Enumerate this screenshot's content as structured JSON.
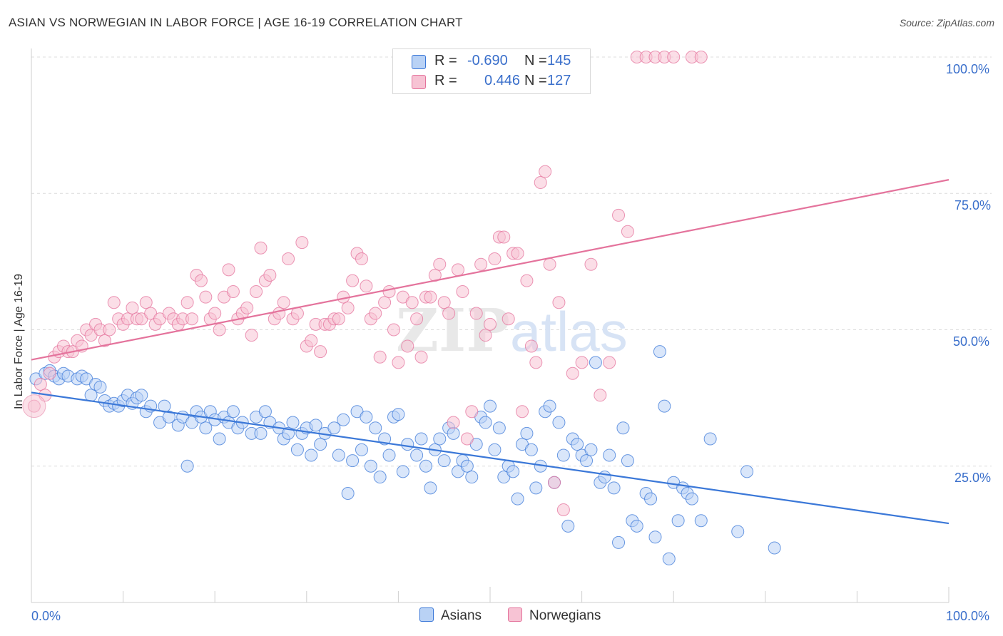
{
  "title": "ASIAN VS NORWEGIAN IN LABOR FORCE | AGE 16-19 CORRELATION CHART",
  "source": "Source: ZipAtlas.com",
  "watermark": "ZIPatlas",
  "colors": {
    "asian": "#3b78d8",
    "asian_fill": "#b9d2f5",
    "norwegian": "#e4739c",
    "norwegian_fill": "#f7c3d4",
    "tick_label": "#3a6fcb",
    "grid": "#dcdcdc"
  },
  "legend": {
    "rows": [
      {
        "r_label": "R =",
        "r_value": "-0.690",
        "n_label": "N =",
        "n_value": "145"
      },
      {
        "r_label": "R =",
        "r_value": "0.446",
        "n_label": "N =",
        "n_value": "127"
      }
    ]
  },
  "bottom_legend": {
    "asians": "Asians",
    "norwegians": "Norwegians"
  },
  "chart_data": {
    "type": "scatter",
    "title": "ASIAN VS NORWEGIAN IN LABOR FORCE | AGE 16-19 CORRELATION CHART",
    "xlabel": "",
    "ylabel": "In Labor Force | Age 16-19",
    "xlim": [
      0,
      100
    ],
    "ylim": [
      0,
      100
    ],
    "x_tick_labels": [
      "0.0%",
      "100.0%"
    ],
    "y_tick_labels": [
      "25.0%",
      "50.0%",
      "75.0%",
      "100.0%"
    ],
    "y_ticks": [
      25,
      50,
      75,
      100
    ],
    "grid": "horizontal dashed",
    "legend_position": "top-center",
    "series": [
      {
        "name": "Asians",
        "r": -0.69,
        "n": 145,
        "trend": {
          "x0": 0,
          "y0": 38.5,
          "x1": 100,
          "y1": 14.5
        },
        "points": [
          [
            0.5,
            41
          ],
          [
            1.5,
            42
          ],
          [
            2,
            42.5
          ],
          [
            2.5,
            41.5
          ],
          [
            3,
            41
          ],
          [
            3.5,
            42
          ],
          [
            4,
            41.5
          ],
          [
            5,
            41
          ],
          [
            5.5,
            41.5
          ],
          [
            6,
            41
          ],
          [
            6.5,
            38
          ],
          [
            7,
            40
          ],
          [
            7.5,
            39.5
          ],
          [
            8,
            37
          ],
          [
            8.5,
            36
          ],
          [
            9,
            36.5
          ],
          [
            9.5,
            36
          ],
          [
            10,
            37
          ],
          [
            10.5,
            38
          ],
          [
            11,
            36.5
          ],
          [
            11.5,
            37.5
          ],
          [
            12,
            38
          ],
          [
            12.5,
            35
          ],
          [
            13,
            36
          ],
          [
            14,
            33
          ],
          [
            14.5,
            36
          ],
          [
            15,
            34
          ],
          [
            16,
            32.5
          ],
          [
            16.5,
            34
          ],
          [
            17,
            25
          ],
          [
            17.5,
            33
          ],
          [
            18,
            35
          ],
          [
            18.5,
            34
          ],
          [
            19,
            32
          ],
          [
            19.5,
            35
          ],
          [
            20,
            33.5
          ],
          [
            20.5,
            30
          ],
          [
            21,
            34
          ],
          [
            21.5,
            33
          ],
          [
            22,
            35
          ],
          [
            22.5,
            32
          ],
          [
            23,
            33
          ],
          [
            24,
            31
          ],
          [
            24.5,
            34
          ],
          [
            25,
            31
          ],
          [
            25.5,
            35
          ],
          [
            26,
            33
          ],
          [
            27,
            32
          ],
          [
            27.5,
            30
          ],
          [
            28,
            31
          ],
          [
            28.5,
            33
          ],
          [
            29,
            28
          ],
          [
            29.5,
            31
          ],
          [
            30,
            32
          ],
          [
            30.5,
            27
          ],
          [
            31,
            32.5
          ],
          [
            31.5,
            29
          ],
          [
            32,
            31
          ],
          [
            33,
            32
          ],
          [
            33.5,
            27
          ],
          [
            34,
            33.5
          ],
          [
            34.5,
            20
          ],
          [
            35,
            26
          ],
          [
            35.5,
            35
          ],
          [
            36,
            28
          ],
          [
            36.5,
            34
          ],
          [
            37,
            25
          ],
          [
            37.5,
            32
          ],
          [
            38,
            23
          ],
          [
            38.5,
            30
          ],
          [
            39,
            27
          ],
          [
            39.5,
            34
          ],
          [
            40,
            34.5
          ],
          [
            40.5,
            24
          ],
          [
            41,
            29
          ],
          [
            42,
            27
          ],
          [
            42.5,
            30
          ],
          [
            43,
            25
          ],
          [
            43.5,
            21
          ],
          [
            44,
            28
          ],
          [
            44.5,
            30
          ],
          [
            45,
            26
          ],
          [
            45.5,
            32
          ],
          [
            46,
            31
          ],
          [
            46.5,
            24
          ],
          [
            47,
            26
          ],
          [
            47.5,
            25
          ],
          [
            48,
            23
          ],
          [
            48.5,
            29
          ],
          [
            49,
            34
          ],
          [
            49.5,
            33
          ],
          [
            50,
            36
          ],
          [
            50.5,
            28
          ],
          [
            51,
            32
          ],
          [
            51.5,
            23
          ],
          [
            52,
            25
          ],
          [
            52.5,
            24
          ],
          [
            53,
            19
          ],
          [
            53.5,
            29
          ],
          [
            54,
            31
          ],
          [
            54.5,
            28
          ],
          [
            55,
            21
          ],
          [
            55.5,
            25
          ],
          [
            56,
            35
          ],
          [
            56.5,
            36
          ],
          [
            57,
            22
          ],
          [
            57.5,
            33
          ],
          [
            58,
            27
          ],
          [
            58.5,
            14
          ],
          [
            59,
            30
          ],
          [
            59.5,
            29
          ],
          [
            60,
            27
          ],
          [
            60.5,
            26
          ],
          [
            61,
            28
          ],
          [
            61.5,
            44
          ],
          [
            62,
            22
          ],
          [
            62.5,
            23
          ],
          [
            63,
            27
          ],
          [
            63.5,
            21
          ],
          [
            64,
            11
          ],
          [
            64.5,
            32
          ],
          [
            65,
            26
          ],
          [
            65.5,
            15
          ],
          [
            66,
            14
          ],
          [
            67,
            20
          ],
          [
            67.5,
            19
          ],
          [
            68,
            12
          ],
          [
            68.5,
            46
          ],
          [
            69,
            36
          ],
          [
            69.5,
            8
          ],
          [
            70,
            22
          ],
          [
            70.5,
            15
          ],
          [
            71,
            21
          ],
          [
            71.5,
            20
          ],
          [
            72,
            19
          ],
          [
            73,
            15
          ],
          [
            74,
            30
          ],
          [
            77,
            13
          ],
          [
            78,
            24
          ],
          [
            81,
            10
          ]
        ]
      },
      {
        "name": "Norwegians",
        "r": 0.446,
        "n": 127,
        "trend": {
          "x0": 0,
          "y0": 44.5,
          "x1": 100,
          "y1": 77.5
        },
        "points": [
          [
            0.3,
            36
          ],
          [
            1,
            40
          ],
          [
            1.5,
            38
          ],
          [
            2,
            42
          ],
          [
            2.5,
            45
          ],
          [
            3,
            46
          ],
          [
            3.5,
            47
          ],
          [
            4,
            46
          ],
          [
            4.5,
            46
          ],
          [
            5,
            48
          ],
          [
            5.5,
            47
          ],
          [
            6,
            50
          ],
          [
            6.5,
            49
          ],
          [
            7,
            51
          ],
          [
            7.5,
            50
          ],
          [
            8,
            48
          ],
          [
            8.5,
            50
          ],
          [
            9,
            55
          ],
          [
            9.5,
            52
          ],
          [
            10,
            51
          ],
          [
            10.5,
            52
          ],
          [
            11,
            54
          ],
          [
            11.5,
            52
          ],
          [
            12,
            52
          ],
          [
            12.5,
            55
          ],
          [
            13,
            53
          ],
          [
            13.5,
            51
          ],
          [
            14,
            52
          ],
          [
            15,
            53
          ],
          [
            15.5,
            52
          ],
          [
            16,
            51
          ],
          [
            16.5,
            52
          ],
          [
            17,
            55
          ],
          [
            17.5,
            52
          ],
          [
            18,
            60
          ],
          [
            18.5,
            59
          ],
          [
            19,
            56
          ],
          [
            19.5,
            52
          ],
          [
            20,
            53
          ],
          [
            20.5,
            50
          ],
          [
            21,
            56
          ],
          [
            21.5,
            61
          ],
          [
            22,
            57
          ],
          [
            22.5,
            52
          ],
          [
            23,
            53
          ],
          [
            23.5,
            54
          ],
          [
            24,
            49
          ],
          [
            24.5,
            57
          ],
          [
            25,
            65
          ],
          [
            25.5,
            59
          ],
          [
            26,
            60
          ],
          [
            26.5,
            52
          ],
          [
            27,
            53
          ],
          [
            27.5,
            55
          ],
          [
            28,
            63
          ],
          [
            28.5,
            52
          ],
          [
            29,
            53
          ],
          [
            29.5,
            66
          ],
          [
            30,
            47
          ],
          [
            30.5,
            48
          ],
          [
            31,
            51
          ],
          [
            31.5,
            46
          ],
          [
            32,
            51
          ],
          [
            32.5,
            51
          ],
          [
            33,
            52
          ],
          [
            33.5,
            52
          ],
          [
            34,
            56
          ],
          [
            34.5,
            54
          ],
          [
            35,
            59
          ],
          [
            35.5,
            64
          ],
          [
            36,
            63
          ],
          [
            36.5,
            58
          ],
          [
            37,
            52
          ],
          [
            37.5,
            53
          ],
          [
            38,
            45
          ],
          [
            38.5,
            55
          ],
          [
            39,
            57
          ],
          [
            39.5,
            50
          ],
          [
            40,
            44
          ],
          [
            40.5,
            56
          ],
          [
            41,
            47
          ],
          [
            41.5,
            55
          ],
          [
            42,
            52
          ],
          [
            42.5,
            45
          ],
          [
            43,
            56
          ],
          [
            43.5,
            56
          ],
          [
            44,
            60
          ],
          [
            44.5,
            62
          ],
          [
            45,
            55
          ],
          [
            45.5,
            53
          ],
          [
            46,
            33
          ],
          [
            46.5,
            61
          ],
          [
            47,
            57
          ],
          [
            47.5,
            30
          ],
          [
            48,
            35
          ],
          [
            48.5,
            53
          ],
          [
            49,
            62
          ],
          [
            49.5,
            49
          ],
          [
            50,
            51
          ],
          [
            50.5,
            63
          ],
          [
            51,
            67
          ],
          [
            51.5,
            67
          ],
          [
            52,
            52
          ],
          [
            52.5,
            64
          ],
          [
            53,
            64
          ],
          [
            53.5,
            35
          ],
          [
            54,
            59
          ],
          [
            54.5,
            47
          ],
          [
            55,
            44
          ],
          [
            55.5,
            77
          ],
          [
            56,
            79
          ],
          [
            56.5,
            62
          ],
          [
            57,
            22
          ],
          [
            57.5,
            55
          ],
          [
            58,
            17
          ],
          [
            59,
            42
          ],
          [
            60,
            44
          ],
          [
            61,
            62
          ],
          [
            62,
            38
          ],
          [
            63,
            44
          ],
          [
            64,
            71
          ],
          [
            65,
            68
          ],
          [
            66,
            100
          ],
          [
            67,
            100
          ],
          [
            68,
            100
          ],
          [
            69,
            100
          ],
          [
            70,
            100
          ],
          [
            72,
            100
          ],
          [
            73,
            100
          ]
        ]
      }
    ]
  }
}
